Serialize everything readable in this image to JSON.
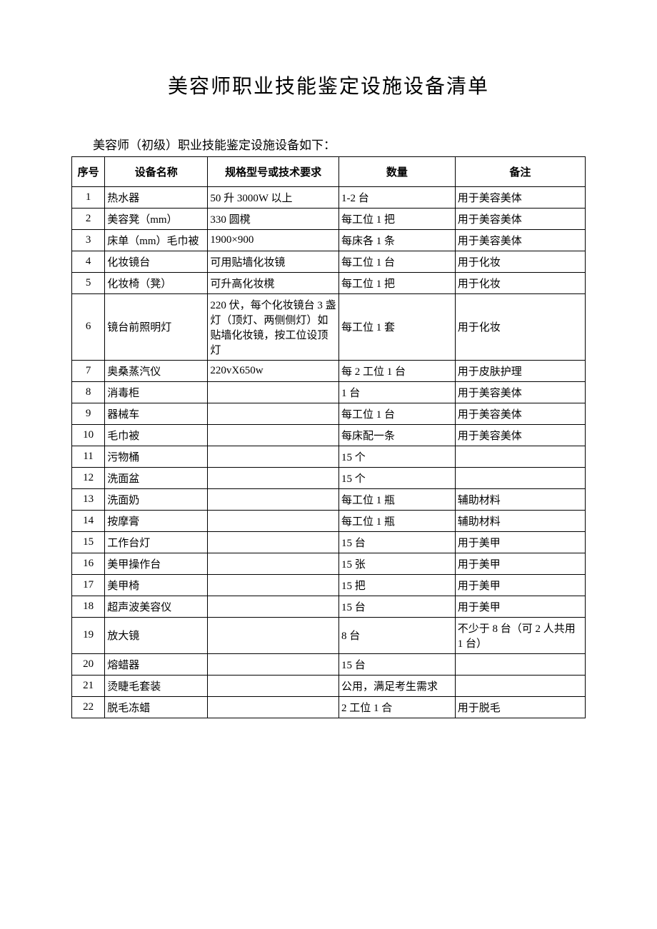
{
  "title": "美容师职业技能鉴定设施设备清单",
  "subtitle": "美容师（初级）职业技能鉴定设施设备如下：",
  "table": {
    "headers": {
      "seq": "序号",
      "name": "设备名称",
      "spec": "规格型号或技术要求",
      "qty": "数量",
      "note": "备注"
    },
    "rows": [
      {
        "seq": "1",
        "name": "热水器",
        "spec": "50 升 3000W 以上",
        "qty": "1-2 台",
        "note": "用于美容美体"
      },
      {
        "seq": "2",
        "name": "美容凳（mm）",
        "spec": "330 圆櫈",
        "qty": "每工位 1 把",
        "note": "用于美容美体"
      },
      {
        "seq": "3",
        "name": "床单（mm）毛巾被",
        "spec": "1900×900",
        "qty": "每床各 1 条",
        "note": "用于美容美体"
      },
      {
        "seq": "4",
        "name": "化妆镜台",
        "spec": "可用贴墙化妆镜",
        "qty": "每工位 1 台",
        "note": "用于化妆"
      },
      {
        "seq": "5",
        "name": "化妆椅（凳）",
        "spec": "可升高化妆櫈",
        "qty": "每工位 1 把",
        "note": "用于化妆"
      },
      {
        "seq": "6",
        "name": "镜台前照明灯",
        "spec": "220 伏，每个化妆镜台 3 盏灯（顶灯、两侧侧灯）如贴墙化妆镜，按工位设顶灯",
        "qty": "每工位 1 套",
        "note": "用于化妆"
      },
      {
        "seq": "7",
        "name": "奥桑蒸汽仪",
        "spec": "220vX650w",
        "qty": "每 2 工位 1 台",
        "note": "用于皮肤护理"
      },
      {
        "seq": "8",
        "name": "消毒柜",
        "spec": "",
        "qty": "1 台",
        "note": "用于美容美体"
      },
      {
        "seq": "9",
        "name": "器械车",
        "spec": "",
        "qty": "每工位 1 台",
        "note": "用于美容美体"
      },
      {
        "seq": "10",
        "name": "毛巾被",
        "spec": "",
        "qty": "每床配一条",
        "note": "用于美容美体"
      },
      {
        "seq": "11",
        "name": "污物桶",
        "spec": "",
        "qty": "15 个",
        "note": ""
      },
      {
        "seq": "12",
        "name": "洗面盆",
        "spec": "",
        "qty": "15 个",
        "note": ""
      },
      {
        "seq": "13",
        "name": "洗面奶",
        "spec": "",
        "qty": "每工位 1 瓶",
        "note": "辅助材料"
      },
      {
        "seq": "14",
        "name": "按摩膏",
        "spec": "",
        "qty": "每工位 1 瓶",
        "note": "辅助材料"
      },
      {
        "seq": "15",
        "name": "工作台灯",
        "spec": "",
        "qty": "15 台",
        "note": "用于美甲"
      },
      {
        "seq": "16",
        "name": "美甲操作台",
        "spec": "",
        "qty": "15 张",
        "note": "用于美甲"
      },
      {
        "seq": "17",
        "name": "美甲椅",
        "spec": "",
        "qty": "15 把",
        "note": "用于美甲"
      },
      {
        "seq": "18",
        "name": "超声波美容仪",
        "spec": "",
        "qty": "15 台",
        "note": "用于美甲"
      },
      {
        "seq": "19",
        "name": "放大镜",
        "spec": "",
        "qty": "8 台",
        "note": "不少于 8 台（可 2 人共用 1 台）"
      },
      {
        "seq": "20",
        "name": "熔蜡器",
        "spec": "",
        "qty": "15 台",
        "note": ""
      },
      {
        "seq": "21",
        "name": "烫睫毛套装",
        "spec": "",
        "qty": "公用，满足考生需求",
        "note": ""
      },
      {
        "seq": "22",
        "name": "脱毛冻蜡",
        "spec": "",
        "qty": "2 工位 1 合",
        "note": "用于脱毛"
      }
    ]
  }
}
